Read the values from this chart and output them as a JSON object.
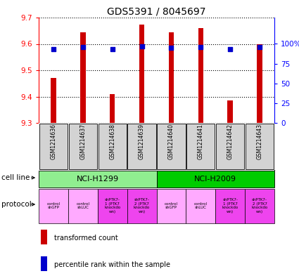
{
  "title": "GDS5391 / 8045697",
  "samples": [
    "GSM1214636",
    "GSM1214637",
    "GSM1214638",
    "GSM1214639",
    "GSM1214640",
    "GSM1214641",
    "GSM1214642",
    "GSM1214643"
  ],
  "bar_values": [
    9.47,
    9.645,
    9.41,
    9.672,
    9.645,
    9.66,
    9.385,
    9.598
  ],
  "bar_base": 9.3,
  "percentile_values": [
    93,
    96,
    93,
    97,
    95,
    96,
    93,
    96
  ],
  "ylim": [
    9.3,
    9.7
  ],
  "yticks_left": [
    9.3,
    9.4,
    9.5,
    9.6,
    9.7
  ],
  "yticks_right": [
    0,
    25,
    50,
    75,
    100
  ],
  "bar_color": "#cc0000",
  "percentile_color": "#0000cc",
  "cell_line_groups": [
    {
      "label": "NCI-H1299",
      "start": 0,
      "end": 3,
      "color": "#90ee90"
    },
    {
      "label": "NCI-H2009",
      "start": 4,
      "end": 7,
      "color": "#00cc00"
    }
  ],
  "protocols": [
    {
      "label": "control\nshGFP",
      "color": "#ffaaff"
    },
    {
      "label": "control\nshLUC",
      "color": "#ffaaff"
    },
    {
      "label": "shPTK7-\n1 (PTK7\nknockdo\nwn)",
      "color": "#ee44ee"
    },
    {
      "label": "shPTK7-\n2 (PTK7\nknockdo\nwn)",
      "color": "#ee44ee"
    },
    {
      "label": "control\nshGFP",
      "color": "#ffaaff"
    },
    {
      "label": "control\nshLUC",
      "color": "#ffaaff"
    },
    {
      "label": "shPTK7-\n1 (PTK7\nknockdo\nwn)",
      "color": "#ee44ee"
    },
    {
      "label": "shPTK7-\n2 (PTK7\nknockdo\nwn)",
      "color": "#ee44ee"
    }
  ],
  "sample_bg_color": "#d3d3d3",
  "legend_bar_label": "transformed count",
  "legend_pct_label": "percentile rank within the sample",
  "cell_line_label": "cell line",
  "protocol_label": "protocol"
}
